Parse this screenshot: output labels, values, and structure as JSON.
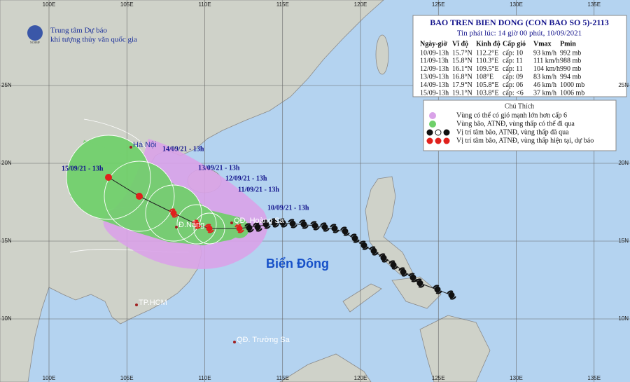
{
  "agency": {
    "line1": "Trung tâm Dự báo",
    "line2": "khí tượng thủy văn quốc gia",
    "logo": "NCHMF"
  },
  "bulletin": {
    "title": "BAO TREN BIEN DONG (CON BAO SO 5)-2113",
    "issued": "Tin phát lúc: 14 giờ 00 phút, 10/09/2021",
    "columns": [
      "Ngày-giờ",
      "Vĩ độ",
      "Kinh độ",
      "Cấp gió",
      "Vmax",
      "Pmin"
    ],
    "rows": [
      [
        "10/09-13h",
        "15.7°N",
        "112.2°E",
        "cấp: 10",
        "93 km/h",
        "992 mb"
      ],
      [
        "11/09-13h",
        "15.8°N",
        "110.3°E",
        "cấp: 11",
        "111 km/h",
        "988 mb"
      ],
      [
        "12/09-13h",
        "16.1°N",
        "109.5°E",
        "cấp: 11",
        "104 km/h",
        "990 mb"
      ],
      [
        "13/09-13h",
        "16.8°N",
        "108°E",
        "cấp: 09",
        "83 km/h",
        "994 mb"
      ],
      [
        "14/09-13h",
        "17.9°N",
        "105.8°E",
        "cấp: 06",
        "46 km/h",
        "1000 mb"
      ],
      [
        "15/09-13h",
        "19.1°N",
        "103.8°E",
        "cấp: <6",
        "37 km/h",
        "1006 mb"
      ]
    ]
  },
  "legend": {
    "title": "Chú Thích",
    "items": [
      "Vùng có thể có gió mạnh lớn hơn cấp 6",
      "Vùng bão, ATNĐ, vùng thấp có thể đi qua",
      "Vị trí tâm bão, ATNĐ, vùng thấp đã qua",
      "Vị trí tâm bão, ATNĐ, vùng thấp hiện tại, dự báo"
    ]
  },
  "axes": {
    "longitudes": [
      "100E",
      "105E",
      "110E",
      "115E",
      "120E",
      "125E",
      "130E",
      "135E"
    ],
    "latitudes": [
      "25N",
      "20N",
      "15N",
      "10N"
    ]
  },
  "places": [
    "Hà Nội",
    "Đ.Nẵng",
    "QĐ. Hoàng Sa",
    "TP.HCM",
    "QĐ. Trường Sa",
    "Biển Đông"
  ],
  "forecast_labels": [
    "10/09/21 - 13h",
    "11/09/21 - 13h",
    "12/09/21 - 13h",
    "13/09/21 - 13h",
    "14/09/21 - 13h",
    "15/09/21 - 13h"
  ]
}
